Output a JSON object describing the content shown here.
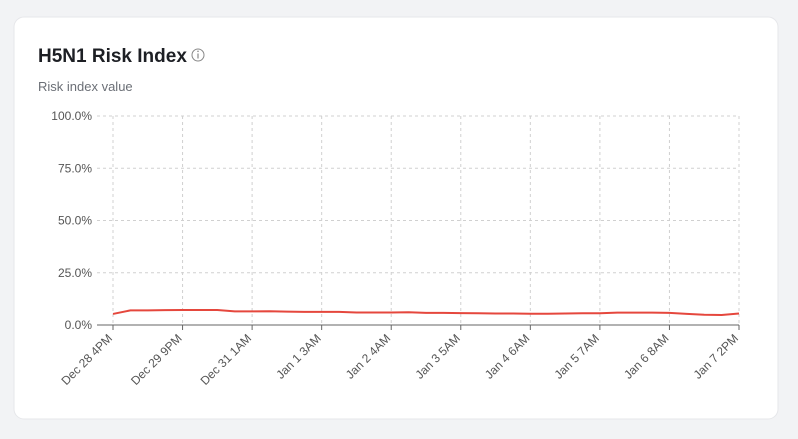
{
  "chart_data": {
    "type": "line",
    "title": "H5N1 Risk Index",
    "subtitle": "Risk index value",
    "categories": [
      "Dec 28 4PM",
      null,
      null,
      null,
      "Dec 29 9PM",
      null,
      null,
      null,
      "Dec 31 1AM",
      null,
      null,
      null,
      "Jan 1 3AM",
      null,
      null,
      null,
      "Jan 2 4AM",
      null,
      null,
      null,
      "Jan 3 5AM",
      null,
      null,
      null,
      "Jan 4 6AM",
      null,
      null,
      null,
      "Jan 5 7AM",
      null,
      null,
      null,
      "Jan 6 8AM",
      null,
      null,
      null,
      "Jan 7 2PM"
    ],
    "values": [
      5.3,
      7.0,
      7.0,
      7.1,
      7.2,
      7.2,
      7.2,
      6.5,
      6.5,
      6.6,
      6.4,
      6.3,
      6.3,
      6.3,
      6.0,
      6.0,
      6.0,
      6.1,
      5.8,
      5.8,
      5.7,
      5.6,
      5.5,
      5.5,
      5.4,
      5.4,
      5.5,
      5.6,
      5.6,
      5.9,
      5.9,
      5.9,
      5.8,
      5.3,
      4.9,
      4.8,
      5.5
    ],
    "color": "#e5473d",
    "ylim": [
      0,
      100
    ],
    "yticks": [
      {
        "value": 0,
        "label": "0.0%"
      },
      {
        "value": 25,
        "label": "25.0%"
      },
      {
        "value": 50,
        "label": "50.0%"
      },
      {
        "value": 75,
        "label": "75.0%"
      },
      {
        "value": 100,
        "label": "100.0%"
      }
    ],
    "grid": true
  }
}
